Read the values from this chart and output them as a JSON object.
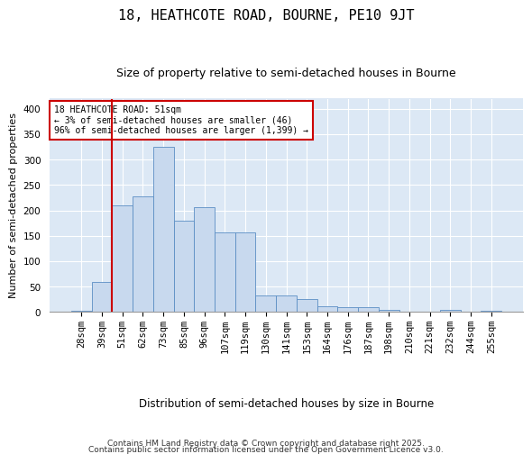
{
  "title": "18, HEATHCOTE ROAD, BOURNE, PE10 9JT",
  "subtitle": "Size of property relative to semi-detached houses in Bourne",
  "xlabel": "Distribution of semi-detached houses by size in Bourne",
  "ylabel": "Number of semi-detached properties",
  "categories": [
    "28sqm",
    "39sqm",
    "51sqm",
    "62sqm",
    "73sqm",
    "85sqm",
    "96sqm",
    "107sqm",
    "119sqm",
    "130sqm",
    "141sqm",
    "153sqm",
    "164sqm",
    "176sqm",
    "187sqm",
    "198sqm",
    "210sqm",
    "221sqm",
    "232sqm",
    "244sqm",
    "255sqm"
  ],
  "values": [
    2,
    60,
    210,
    228,
    325,
    180,
    207,
    157,
    157,
    33,
    33,
    25,
    12,
    9,
    9,
    5,
    0,
    0,
    4,
    0,
    3
  ],
  "bar_color": "#c8d9ee",
  "bar_edge_color": "#5b8ec4",
  "fig_bg_color": "#ffffff",
  "plot_bg_color": "#dce8f5",
  "grid_color": "#ffffff",
  "vline_color": "#cc0000",
  "vline_x_index": 2,
  "annotation_text": "18 HEATHCOTE ROAD: 51sqm\n← 3% of semi-detached houses are smaller (46)\n96% of semi-detached houses are larger (1,399) →",
  "annotation_box_facecolor": "#ffffff",
  "annotation_box_edgecolor": "#cc0000",
  "footer_line1": "Contains HM Land Registry data © Crown copyright and database right 2025.",
  "footer_line2": "Contains public sector information licensed under the Open Government Licence v3.0.",
  "ylim": [
    0,
    420
  ],
  "yticks": [
    0,
    50,
    100,
    150,
    200,
    250,
    300,
    350,
    400
  ],
  "title_fontsize": 11,
  "subtitle_fontsize": 9,
  "xlabel_fontsize": 8.5,
  "ylabel_fontsize": 8,
  "tick_fontsize": 7.5,
  "annot_fontsize": 7,
  "footer_fontsize": 6.5
}
